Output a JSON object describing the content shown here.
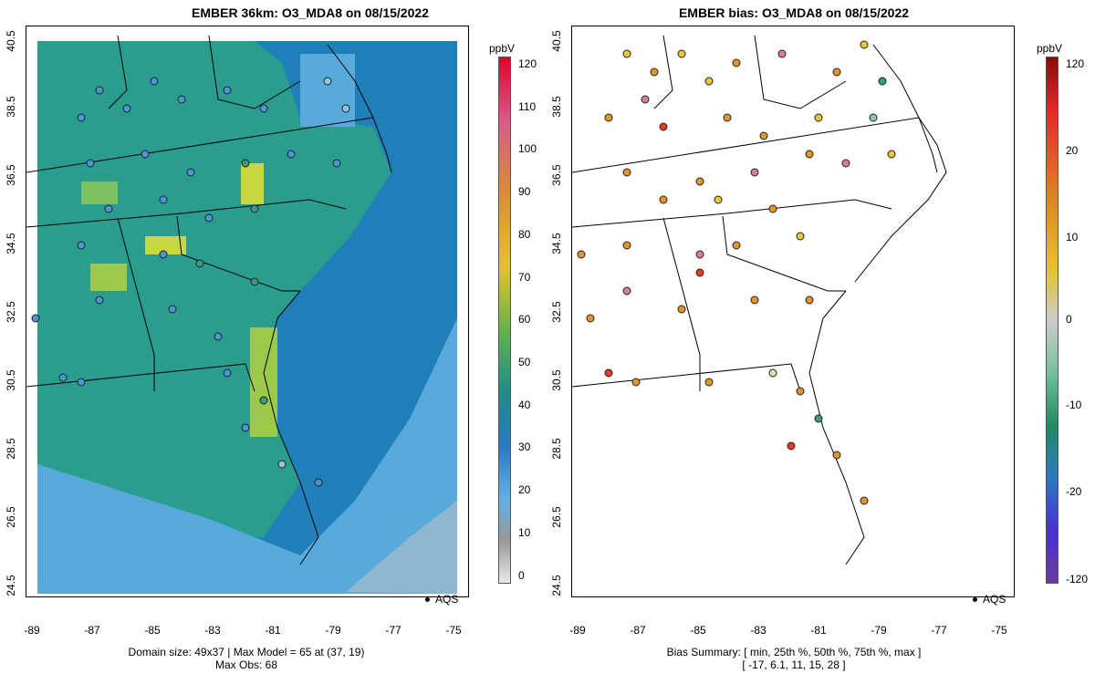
{
  "left": {
    "title": "EMBER 36km: O3_MDA8 on 08/15/2022",
    "summary_line1": "Domain size: 49x37 | Max Model = 65 at (37, 19)",
    "summary_line2": "Max Obs: 68",
    "legend_label": "AQS",
    "colorbar": {
      "unit": "ppbV",
      "ticks": [
        "120",
        "110",
        "100",
        "90",
        "80",
        "70",
        "60",
        "50",
        "40",
        "30",
        "20",
        "10",
        "0"
      ]
    }
  },
  "right": {
    "title": "EMBER bias: O3_MDA8 on 08/15/2022",
    "summary_line1": "Bias Summary: [ min, 25th %, 50th %, 75th %, max ]",
    "summary_line2": "[ -17,  6.1,  11,  15,  28 ]",
    "legend_label": "AQS",
    "colorbar": {
      "unit": "ppbV",
      "ticks": [
        "120",
        "20",
        "10",
        "0",
        "-10",
        "-20",
        "-120"
      ]
    }
  },
  "axes": {
    "x_ticks": [
      "-89",
      "-87",
      "-85",
      "-83",
      "-81",
      "-79",
      "-77",
      "-75"
    ],
    "y_ticks": [
      "40.5",
      "38.5",
      "36.5",
      "34.5",
      "32.5",
      "30.5",
      "28.5",
      "26.5",
      "24.5"
    ]
  },
  "colors": {
    "ocean": "#5aa9db",
    "land_low": "#1f7fb8",
    "land_mid": "#2a9d8f",
    "land_high": "#c8d640",
    "obs_blue": "#4b95d0",
    "obs_green": "#3a9c7a",
    "bias_orange": "#e3952b",
    "bias_yellow": "#e8c63a",
    "bias_red": "#e23a2f",
    "bias_pink": "#d77c9a"
  }
}
